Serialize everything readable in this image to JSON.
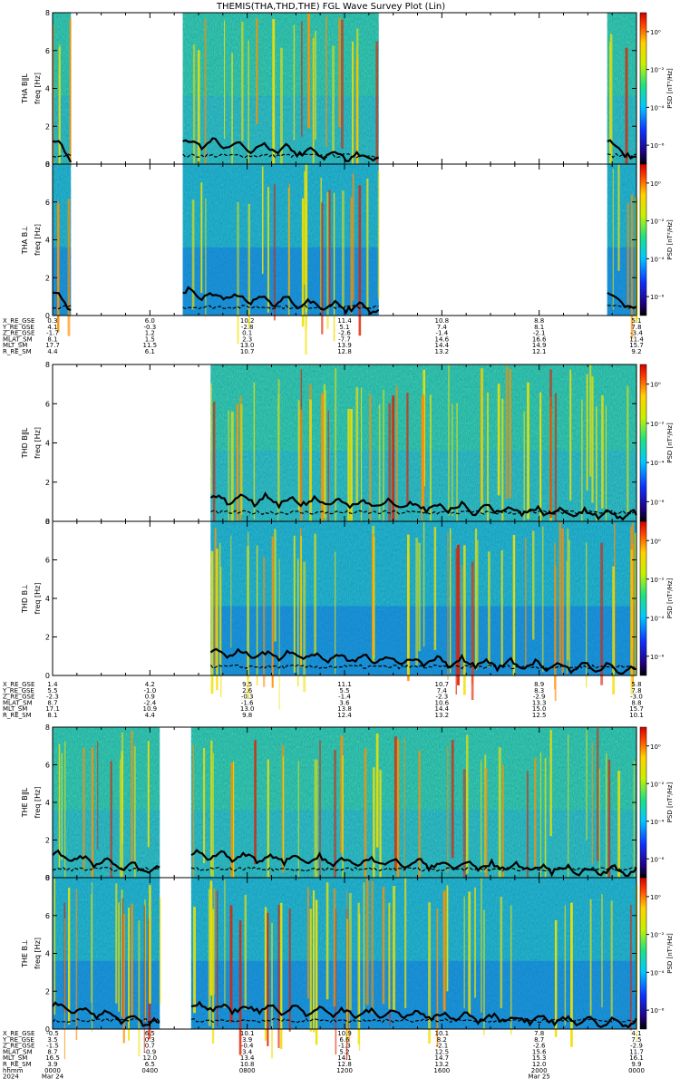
{
  "chart_data": {
    "type": "heatmap",
    "title": "THEMIS(THA,THD,THE) FGL Wave Survey Plot (Lin)",
    "x_range_hours": [
      0,
      24
    ],
    "colorbar": {
      "label": "PSD [nT²/Hz]",
      "ticks": [
        "10⁰",
        "10⁻²",
        "10⁻⁴",
        "10⁻⁶"
      ],
      "ticks_log10": [
        0,
        -2,
        -4,
        -6
      ],
      "range_log10": [
        -7,
        1
      ]
    },
    "groups": [
      {
        "probe": "THA",
        "panels": [
          {
            "name": "THA B‖L",
            "ylabel": "freq [Hz]",
            "yticks": [
              0,
              2,
              4,
              6,
              8
            ],
            "ylim": [
              0,
              8
            ],
            "data_intervals": [
              [
                0,
                0.75
              ],
              [
                5.35,
                13.4
              ],
              [
                22.8,
                24
              ]
            ]
          },
          {
            "name": "THA B⊥",
            "ylabel": "freq [Hz]",
            "yticks": [
              0,
              2,
              4,
              6,
              8
            ],
            "ylim": [
              0,
              8
            ],
            "data_intervals": [
              [
                0,
                0.75
              ],
              [
                5.35,
                13.4
              ],
              [
                22.8,
                24
              ]
            ]
          }
        ],
        "orbit": {
          "labels": [
            "X_RE_GSE",
            "Y_RE_GSE",
            "Z_RE_GSE",
            "MLAT_SM",
            "MLT_SM",
            "R_RE_SM"
          ],
          "columns": [
            [
              "0.3",
              "4.1",
              "-1.7",
              "8.1",
              "17.7",
              "4.4"
            ],
            [
              "6.0",
              "-0.3",
              "1.2",
              "1.5",
              "11.5",
              "6.1"
            ],
            [
              "10.2",
              "-2.8",
              "0.1",
              "2.3",
              "13.0",
              "10.7"
            ],
            [
              "11.4",
              "5.1",
              "-2.6",
              "-7.7",
              "13.9",
              "12.8"
            ],
            [
              "10.8",
              "7.4",
              "-1.4",
              "14.6",
              "14.4",
              "13.2"
            ],
            [
              "8.8",
              "8.1",
              "-2.1",
              "16.6",
              "14.9",
              "12.1"
            ],
            [
              "5.1",
              "7.8",
              "-3.4",
              "11.4",
              "15.7",
              "9.2"
            ]
          ]
        }
      },
      {
        "probe": "THD",
        "panels": [
          {
            "name": "THD B‖L",
            "ylabel": "freq [Hz]",
            "yticks": [
              0,
              2,
              4,
              6,
              8
            ],
            "ylim": [
              0,
              8
            ],
            "data_intervals": [
              [
                6.5,
                24
              ]
            ]
          },
          {
            "name": "THD B⊥",
            "ylabel": "freq [Hz]",
            "yticks": [
              0,
              2,
              4,
              6,
              8
            ],
            "ylim": [
              0,
              8
            ],
            "data_intervals": [
              [
                6.5,
                24
              ]
            ]
          }
        ],
        "orbit": {
          "labels": [
            "X_RE_GSE",
            "Y_RE_GSE",
            "Z_RE_GSE",
            "MLAT_SM",
            "MLT_SM",
            "R_RE_SM"
          ],
          "columns": [
            [
              "1.4",
              "5.5",
              "-2.3",
              "8.7",
              "17.1",
              "8.1"
            ],
            [
              "4.2",
              "-1.0",
              "0.9",
              "-2.4",
              "10.9",
              "4.4"
            ],
            [
              "9.5",
              "2.6",
              "-0.3",
              "-1.6",
              "13.0",
              "9.8"
            ],
            [
              "11.1",
              "5.5",
              "-1.4",
              "3.6",
              "13.8",
              "12.4"
            ],
            [
              "10.7",
              "7.4",
              "-2.3",
              "10.6",
              "14.4",
              "13.2"
            ],
            [
              "8.9",
              "8.3",
              "-2.9",
              "13.3",
              "15.0",
              "12.5"
            ],
            [
              "5.8",
              "7.8",
              "-3.0",
              "8.8",
              "15.7",
              "10.1"
            ]
          ]
        }
      },
      {
        "probe": "THE",
        "panels": [
          {
            "name": "THE B‖L",
            "ylabel": "freq [Hz]",
            "yticks": [
              0,
              2,
              4,
              6,
              8
            ],
            "ylim": [
              0,
              8
            ],
            "data_intervals": [
              [
                0,
                4.4
              ],
              [
                5.7,
                24
              ]
            ]
          },
          {
            "name": "THE B⊥",
            "ylabel": "freq [Hz]",
            "yticks": [
              0,
              2,
              4,
              6,
              8
            ],
            "ylim": [
              0,
              8
            ],
            "data_intervals": [
              [
                0,
                4.4
              ],
              [
                5.7,
                24
              ]
            ]
          }
        ],
        "orbit": {
          "labels": [
            "X_RE_GSE",
            "Y_RE_GSE",
            "Z_RE_GSE",
            "MLAT_SM",
            "MLT_SM",
            "R_RE_SM"
          ],
          "columns": [
            [
              "-0.5",
              "3.5",
              "-1.5",
              "8.7",
              "16.5",
              "3.9"
            ],
            [
              "6.5",
              "0.3",
              "0.7",
              "-0.9",
              "12.0",
              "6.5"
            ],
            [
              "10.1",
              "3.9",
              "-0.4",
              "3.4",
              "13.4",
              "10.8"
            ],
            [
              "10.9",
              "6.6",
              "-1.3",
              "5.2",
              "14.1",
              "12.8"
            ],
            [
              "10.1",
              "8.2",
              "-2.1",
              "12.5",
              "14.7",
              "13.2"
            ],
            [
              "7.8",
              "8.7",
              "-2.6",
              "15.6",
              "15.3",
              "12.0"
            ],
            [
              "4.1",
              "7.5",
              "-2.9",
              "11.7",
              "16.1",
              "9.9"
            ]
          ],
          "hhmm_label": "hhmm",
          "times": [
            "0000",
            "0400",
            "0800",
            "1200",
            "1600",
            "2000",
            "0000"
          ],
          "date_row": [
            "2024",
            "Mar 24",
            "",
            "",
            "",
            "",
            "Mar 25"
          ]
        }
      }
    ]
  }
}
